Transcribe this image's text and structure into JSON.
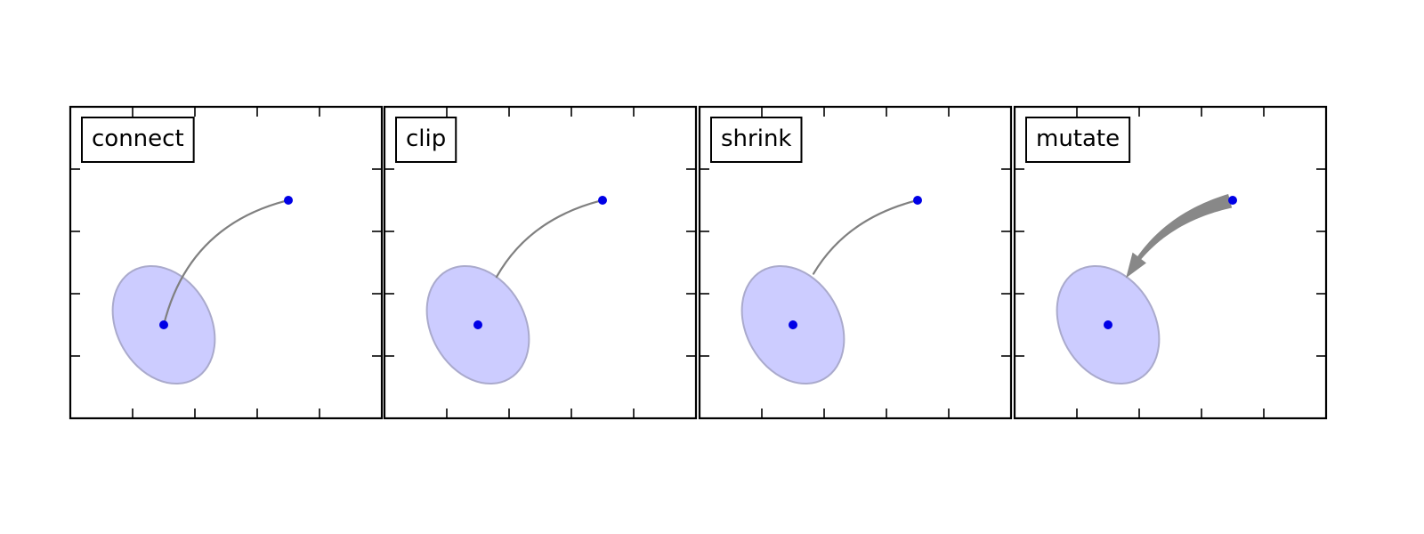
{
  "chart_data": [
    {
      "type": "scatter",
      "label": "connect",
      "connection_style": "connect",
      "xlim": [
        0,
        1
      ],
      "ylim": [
        0,
        1
      ],
      "points": [
        {
          "x": 0.3,
          "y": 0.3
        },
        {
          "x": 0.7,
          "y": 0.7
        }
      ],
      "ellipse": {
        "center": [
          0.3,
          0.3
        ],
        "width": 0.3,
        "height": 0.4,
        "angle": 30,
        "color": "#ccccff",
        "edge_color": "#aaaacc"
      },
      "point_color": "#0000e6",
      "connector_color": "#808080"
    },
    {
      "type": "scatter",
      "label": "clip",
      "connection_style": "clip",
      "xlim": [
        0,
        1
      ],
      "ylim": [
        0,
        1
      ],
      "points": [
        {
          "x": 0.3,
          "y": 0.3
        },
        {
          "x": 0.7,
          "y": 0.7
        }
      ],
      "ellipse": {
        "center": [
          0.3,
          0.3
        ],
        "width": 0.3,
        "height": 0.4,
        "angle": 30,
        "color": "#ccccff",
        "edge_color": "#aaaacc"
      },
      "point_color": "#0000e6",
      "connector_color": "#808080"
    },
    {
      "type": "scatter",
      "label": "shrink",
      "connection_style": "shrink",
      "xlim": [
        0,
        1
      ],
      "ylim": [
        0,
        1
      ],
      "points": [
        {
          "x": 0.3,
          "y": 0.3
        },
        {
          "x": 0.7,
          "y": 0.7
        }
      ],
      "ellipse": {
        "center": [
          0.3,
          0.3
        ],
        "width": 0.3,
        "height": 0.4,
        "angle": 30,
        "color": "#ccccff",
        "edge_color": "#aaaacc"
      },
      "point_color": "#0000e6",
      "connector_color": "#808080"
    },
    {
      "type": "scatter",
      "label": "mutate",
      "connection_style": "mutate",
      "xlim": [
        0,
        1
      ],
      "ylim": [
        0,
        1
      ],
      "points": [
        {
          "x": 0.3,
          "y": 0.3
        },
        {
          "x": 0.7,
          "y": 0.7
        }
      ],
      "ellipse": {
        "center": [
          0.3,
          0.3
        ],
        "width": 0.3,
        "height": 0.4,
        "angle": 30,
        "color": "#ccccff",
        "edge_color": "#aaaacc"
      },
      "point_color": "#0000e6",
      "connector_color": "#888888"
    }
  ],
  "xticks": [
    0.2,
    0.4,
    0.6,
    0.8
  ],
  "yticks": [
    0.2,
    0.4,
    0.6,
    0.8
  ],
  "grid": false
}
